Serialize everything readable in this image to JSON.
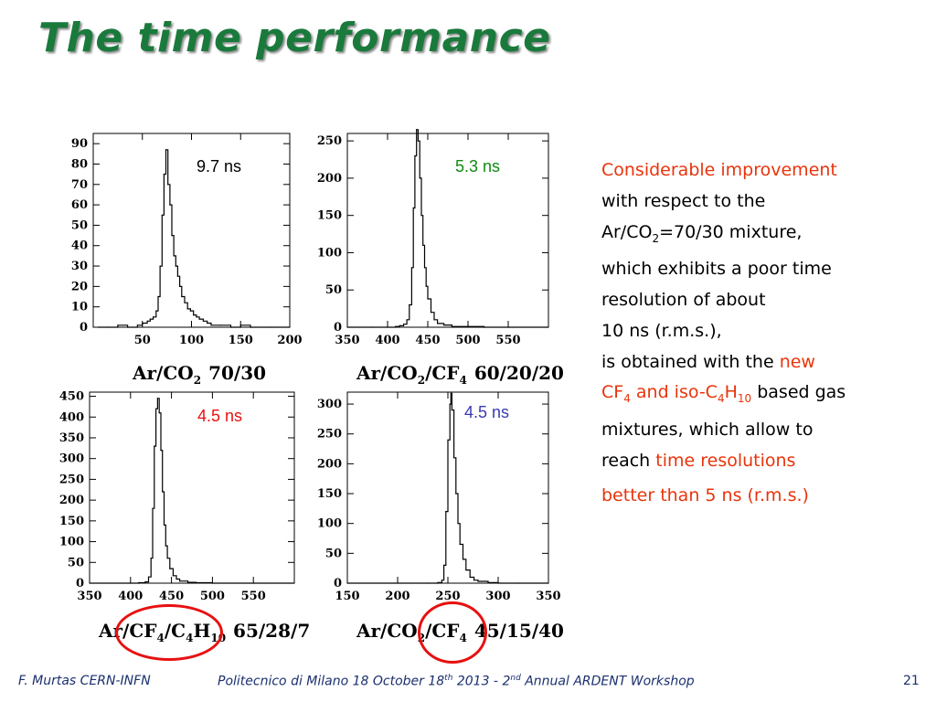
{
  "slide": {
    "title": "The time performance",
    "page_number": "21"
  },
  "footer": {
    "author": "F. Murtas CERN-INFN",
    "venue_a": "Politecnico di Milano 18 October 18",
    "venue_sup1": "th",
    "venue_b": " 2013 - 2",
    "venue_sup2": "nd",
    "venue_c": " Annual ARDENT Workshop"
  },
  "body": {
    "line1": "Considerable improvement",
    "line2": "with respect to the",
    "line3a": "Ar/CO",
    "line3sub": "2",
    "line3b": "=70/30 mixture,",
    "line4": "which exhibits a poor time",
    "line5": "resolution of about",
    "line6": "10 ns (r.m.s.),",
    "line7a": "is obtained with the ",
    "line7b": "new",
    "line8a": "CF",
    "line8sub1": "4",
    "line8b": " and iso-C",
    "line8sub2": "4",
    "line8c": "H",
    "line8sub3": "10",
    "line8d": " based gas",
    "line9": "mixtures, which allow to",
    "line10a": "reach ",
    "line10b": "time resolutions",
    "line11": "better than 5 ns (r.m.s.)",
    "color_red": "#e8340b"
  },
  "captions": {
    "p1": {
      "a": "Ar/CO",
      "s1": "2",
      "b": "70/30"
    },
    "p2": {
      "a": "Ar/CO",
      "s1": "2",
      "b": "/CF",
      "s2": "4",
      "c": "60/20/20"
    },
    "p3": {
      "a": "Ar/CF",
      "s1": "4",
      "b": "/C",
      "s2": "4",
      "c": "H",
      "s3": "10",
      "d": "65/28/7"
    },
    "p4": {
      "a": "Ar/CO",
      "s1": "2",
      "b": "/CF",
      "s2": "4",
      "c": "45/15/40"
    }
  },
  "highlight_color": "#e81010",
  "chart_data": [
    {
      "type": "line",
      "style": "histogram",
      "annotation": "9.7 ns",
      "annotation_color": "#000000",
      "xlim": [
        0,
        200
      ],
      "ylim": [
        0,
        95
      ],
      "x_ticks": [
        50,
        100,
        150,
        200
      ],
      "y_ticks": [
        0,
        10,
        20,
        30,
        40,
        50,
        60,
        70,
        80,
        90
      ],
      "peak": {
        "x": 74,
        "y": 87
      },
      "x": [
        5,
        15,
        25,
        35,
        45,
        50,
        55,
        58,
        61,
        64,
        66,
        68,
        70,
        72,
        74,
        76,
        78,
        80,
        82,
        84,
        86,
        88,
        90,
        93,
        96,
        99,
        102,
        105,
        108,
        112,
        116,
        120,
        130,
        140,
        150,
        160,
        180,
        200
      ],
      "values": [
        0,
        0,
        1,
        0,
        1,
        2,
        3,
        4,
        5,
        8,
        15,
        30,
        55,
        75,
        87,
        70,
        60,
        45,
        35,
        30,
        25,
        20,
        15,
        12,
        9,
        8,
        6,
        5,
        4,
        3,
        2,
        1,
        1,
        0,
        1,
        0,
        0,
        0
      ]
    },
    {
      "type": "line",
      "style": "histogram",
      "annotation": "5.3 ns",
      "annotation_color": "#108a10",
      "xlim": [
        350,
        600
      ],
      "ylim": [
        0,
        260
      ],
      "x_ticks": [
        350,
        400,
        450,
        500,
        550
      ],
      "y_ticks": [
        0,
        50,
        100,
        150,
        200,
        250
      ],
      "peak": {
        "x": 436,
        "y": 265
      },
      "x": [
        350,
        380,
        400,
        410,
        415,
        420,
        424,
        427,
        430,
        432,
        434,
        436,
        438,
        440,
        442,
        444,
        446,
        448,
        450,
        454,
        458,
        462,
        470,
        480,
        500,
        520,
        550,
        600
      ],
      "values": [
        0,
        0,
        0,
        1,
        2,
        4,
        10,
        30,
        80,
        160,
        230,
        265,
        250,
        200,
        150,
        110,
        80,
        55,
        38,
        20,
        10,
        5,
        3,
        1,
        1,
        0,
        0,
        0
      ]
    },
    {
      "type": "line",
      "style": "histogram",
      "annotation": "4.5 ns",
      "annotation_color": "#e81010",
      "xlim": [
        350,
        600
      ],
      "ylim": [
        0,
        460
      ],
      "x_ticks": [
        350,
        400,
        450,
        500,
        550
      ],
      "y_ticks": [
        0,
        50,
        100,
        150,
        200,
        250,
        300,
        350,
        400,
        450
      ],
      "peak": {
        "x": 433,
        "y": 445
      },
      "x": [
        350,
        400,
        410,
        418,
        422,
        425,
        427,
        429,
        431,
        433,
        435,
        437,
        439,
        441,
        443,
        445,
        448,
        452,
        456,
        460,
        470,
        480,
        500,
        550,
        600
      ],
      "values": [
        0,
        0,
        1,
        3,
        15,
        60,
        180,
        330,
        420,
        445,
        410,
        320,
        220,
        140,
        90,
        60,
        35,
        18,
        10,
        5,
        2,
        1,
        0,
        0,
        0
      ]
    },
    {
      "type": "line",
      "style": "histogram",
      "annotation": "4.5 ns",
      "annotation_color": "#3a3ab0",
      "xlim": [
        150,
        350
      ],
      "ylim": [
        0,
        320
      ],
      "x_ticks": [
        150,
        200,
        250,
        300,
        350
      ],
      "y_ticks": [
        0,
        50,
        100,
        150,
        200,
        250,
        300
      ],
      "peak": {
        "x": 253,
        "y": 318
      },
      "x": [
        150,
        200,
        230,
        240,
        244,
        246,
        248,
        250,
        252,
        253,
        254,
        256,
        258,
        260,
        262,
        265,
        268,
        272,
        276,
        280,
        290,
        300,
        320,
        350
      ],
      "values": [
        0,
        0,
        0,
        1,
        5,
        30,
        120,
        240,
        300,
        318,
        290,
        210,
        150,
        100,
        65,
        40,
        22,
        10,
        5,
        3,
        1,
        0,
        0,
        0
      ]
    }
  ]
}
